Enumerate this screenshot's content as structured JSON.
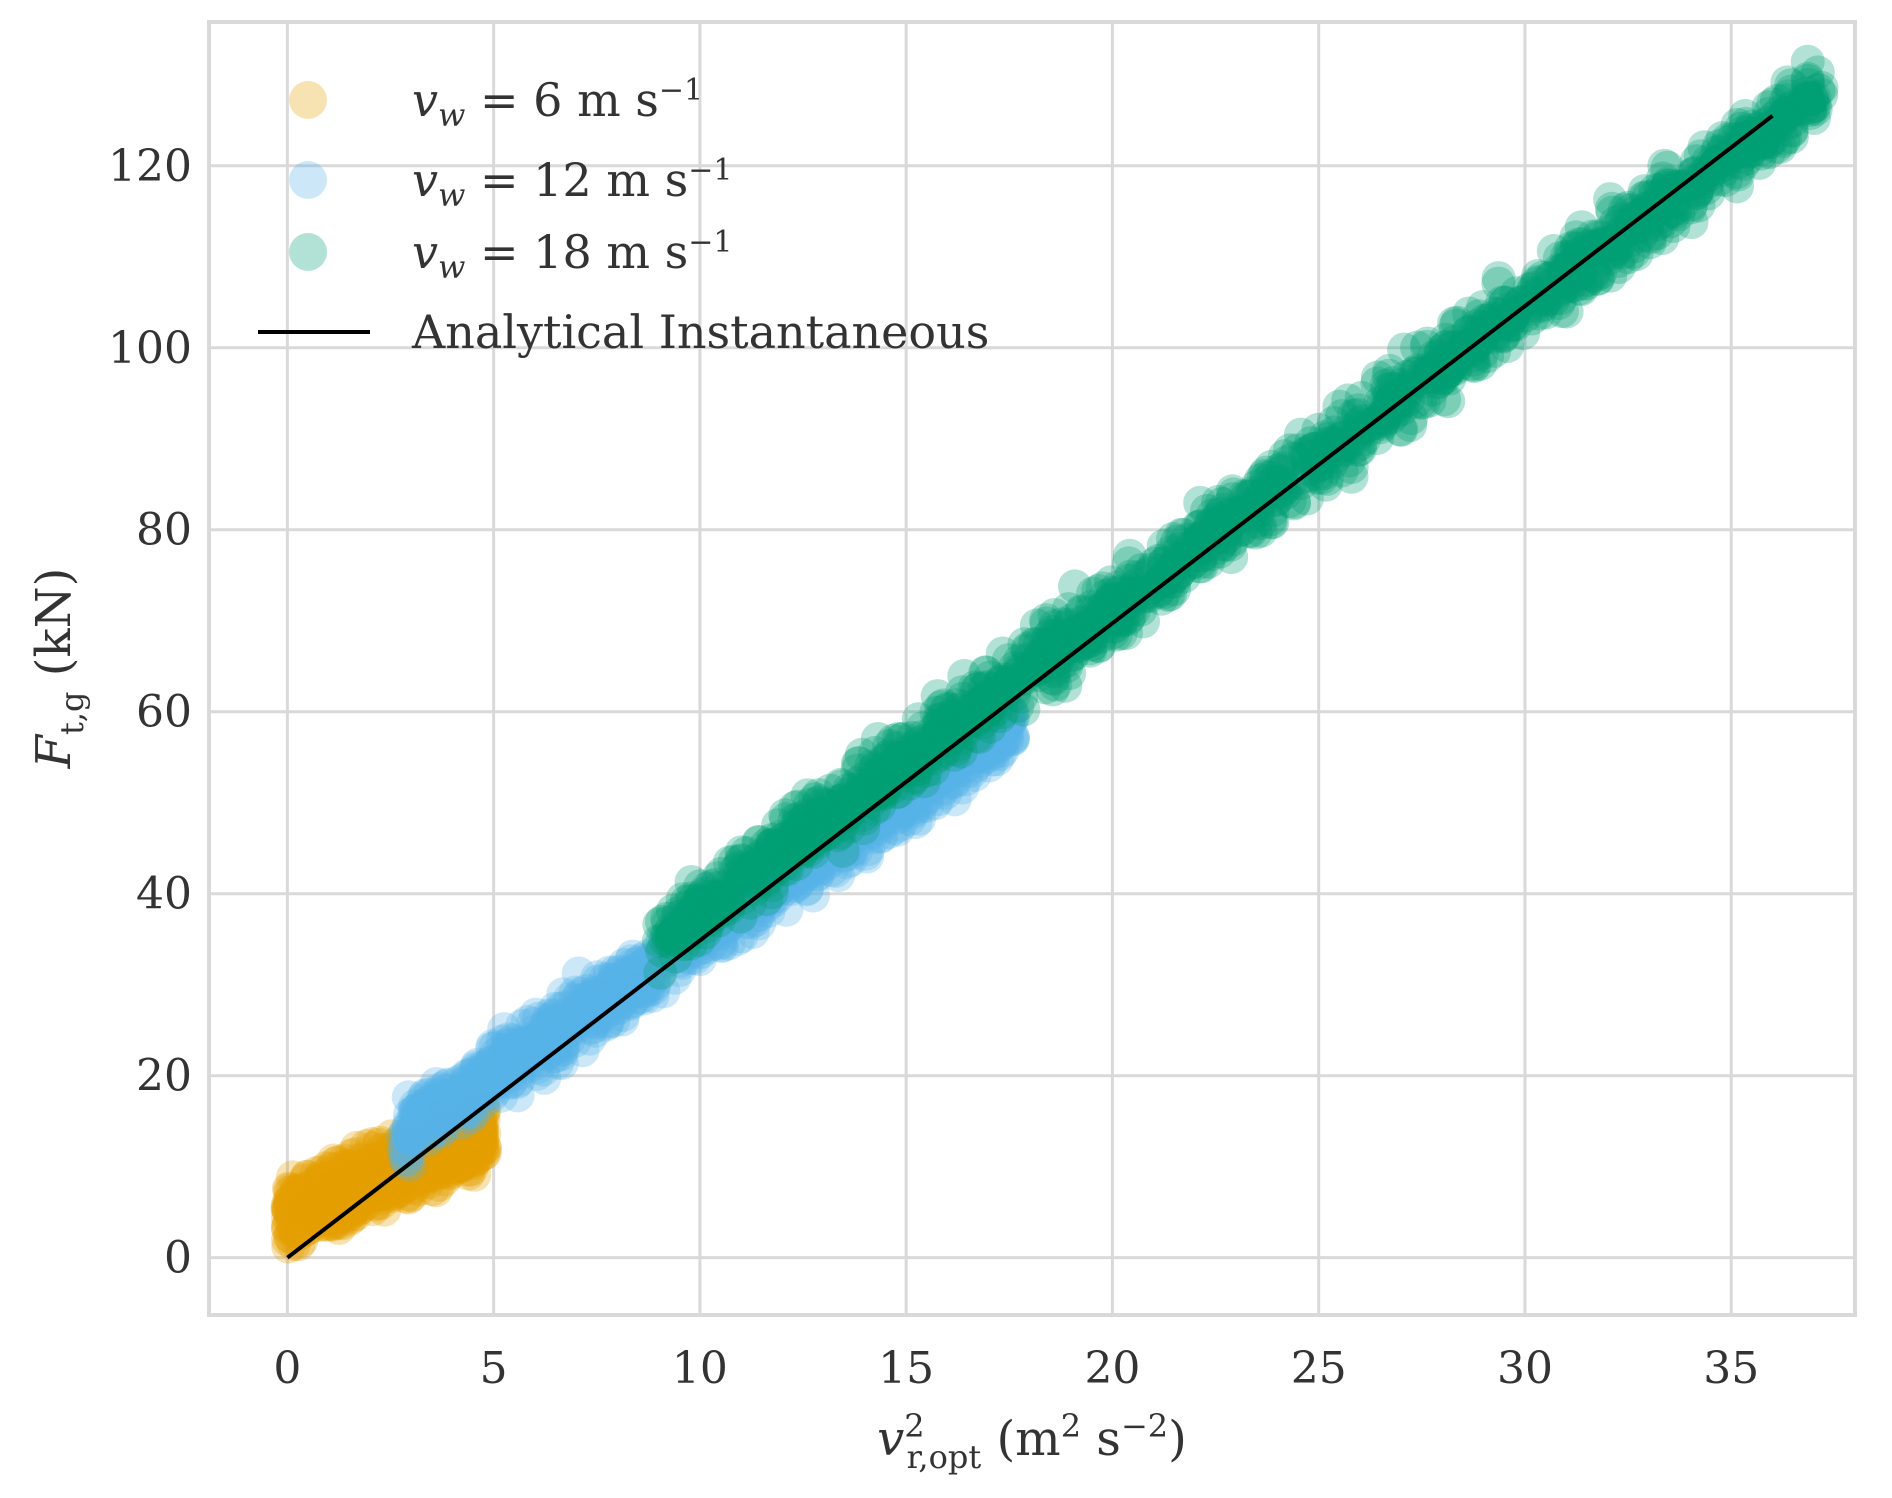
{
  "chart_data": {
    "type": "scatter",
    "xlabel": "v²r,opt (m² s⁻²)",
    "xlabel_parts": {
      "base": "v",
      "sup": "2",
      "sub": "r,opt",
      "unit": " (m",
      "unit_sup1": "2",
      "unit_mid": " s",
      "unit_sup2": "−2",
      "unit_end": ")"
    },
    "ylabel": "Ft,g (kN)",
    "ylabel_parts": {
      "base": "F",
      "sub": "t,g",
      "unit": " (kN)"
    },
    "xlim": [
      -1.9,
      38.0
    ],
    "ylim": [
      -6.3,
      135.8
    ],
    "xticks": [
      0,
      5,
      10,
      15,
      20,
      25,
      30,
      35
    ],
    "yticks": [
      0,
      20,
      40,
      60,
      80,
      100,
      120
    ],
    "grid": true,
    "legend": "top-left",
    "series": [
      {
        "name": "v_w = 6 m s^-1",
        "label_parts": {
          "v": "v",
          "sub": "w",
          "rest": " = 6 m s",
          "sup": "−1"
        },
        "kind": "scatter",
        "color": "#E69F00",
        "alpha": 0.3,
        "band": {
          "x_min": 0.0,
          "x_max": 4.8,
          "slope": 1.9,
          "offset": 4.6,
          "spread": 1.6
        },
        "count": 900
      },
      {
        "name": "v_w = 12 m s^-1",
        "label_parts": {
          "v": "v",
          "sub": "w",
          "rest": " = 12 m s",
          "sup": "−1"
        },
        "kind": "scatter",
        "color": "#56B4E9",
        "alpha": 0.3,
        "band": {
          "x_min": 2.8,
          "x_max": 17.6,
          "slope": 3.05,
          "offset": 5.0,
          "spread": 1.6
        },
        "count": 1100
      },
      {
        "name": "v_w = 18 m s^-1",
        "label_parts": {
          "v": "v",
          "sub": "w",
          "rest": " = 18 m s",
          "sup": "−1"
        },
        "kind": "scatter",
        "color": "#009E73",
        "alpha": 0.3,
        "band": {
          "x_min": 9.0,
          "x_max": 37.2,
          "slope": 3.32,
          "offset": 5.0,
          "spread": 1.8
        },
        "count": 1400
      },
      {
        "name": "Analytical Instantaneous",
        "kind": "line",
        "color": "#000000",
        "x": [
          0,
          36
        ],
        "y": [
          0,
          125.5
        ]
      }
    ]
  }
}
